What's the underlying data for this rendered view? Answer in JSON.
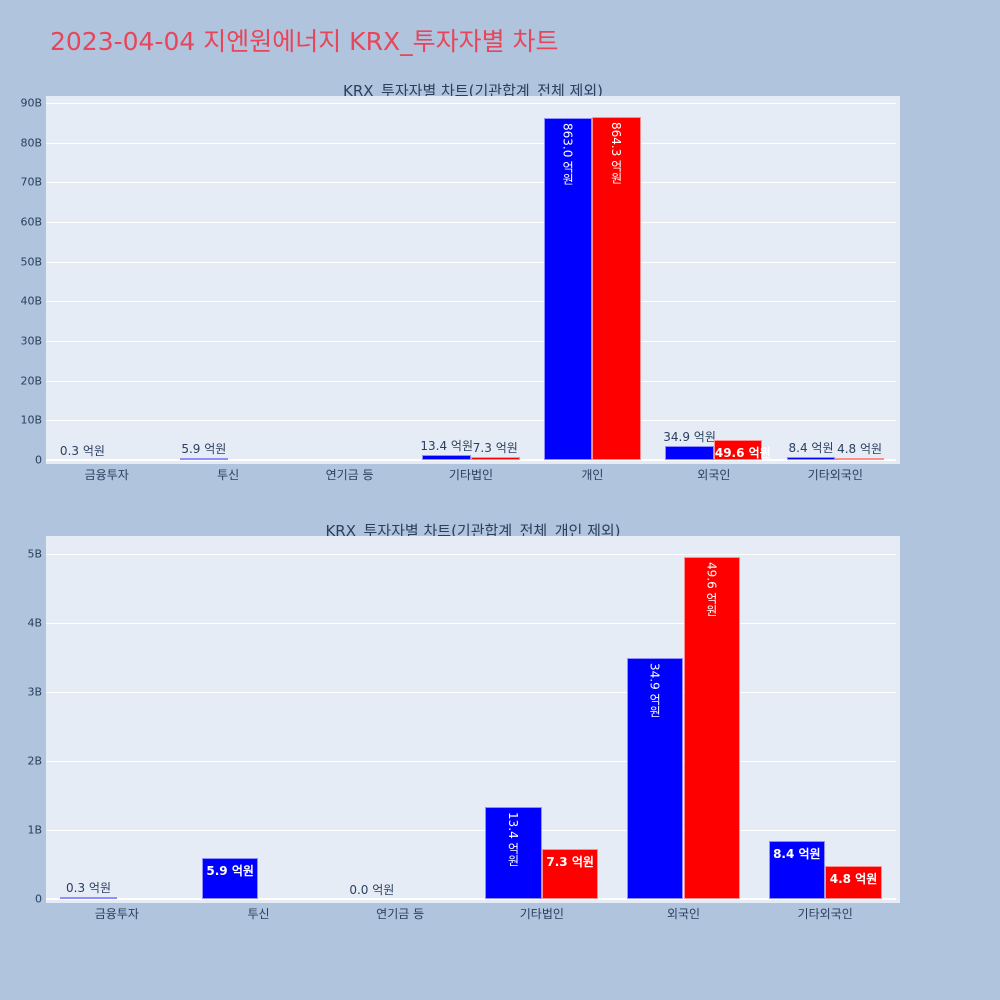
{
  "title": "2023-04-04 지엔원에너지 KRX_투자자별 차트",
  "colors": {
    "background": "#b0c4de",
    "plot_bg": "#e5ecf6",
    "title": "#e8455a",
    "buy": "#0000ff",
    "sell": "#ff0000"
  },
  "charts": [
    {
      "title": "KRX_투자자별 차트(기관합계_전체 제외)",
      "yticks": [
        "0",
        "10B",
        "20B",
        "30B",
        "40B",
        "50B",
        "60B",
        "70B",
        "80B",
        "90B"
      ],
      "categories": [
        "금융투자",
        "투신",
        "연기금 등",
        "기타법인",
        "개인",
        "외국인",
        "기타외국인"
      ],
      "labels": {
        "blue": [
          "0.3 억원",
          "5.9 억원",
          "",
          "13.4 억원",
          "863.0 억원",
          "34.9 억원",
          "8.4 억원"
        ],
        "red": [
          "",
          "",
          "",
          "7.3 억원",
          "864.3 억원",
          "49.6 억원",
          "4.8 억원"
        ]
      }
    },
    {
      "title": "KRX_투자자별 차트(기관합계_전체_개인 제외)",
      "yticks": [
        "0",
        "1B",
        "2B",
        "3B",
        "4B",
        "5B"
      ],
      "categories": [
        "금융투자",
        "투신",
        "연기금 등",
        "기타법인",
        "외국인",
        "기타외국인"
      ],
      "labels": {
        "blue": [
          "0.3 억원",
          "5.9 억원",
          "0.0 억원",
          "13.4 억원",
          "34.9 억원",
          "8.4 억원"
        ],
        "red": [
          "",
          "",
          "",
          "7.3 억원",
          "49.6 억원",
          "4.8 억원"
        ]
      }
    }
  ],
  "chart_data": [
    {
      "type": "bar",
      "title": "KRX_투자자별 차트(기관합계_전체 제외)",
      "categories": [
        "금융투자",
        "투신",
        "연기금 등",
        "기타법인",
        "개인",
        "외국인",
        "기타외국인"
      ],
      "series": [
        {
          "name": "blue",
          "color": "#0000ff",
          "values": [
            0.03,
            0.59,
            0,
            1.34,
            86.3,
            3.49,
            0.84
          ]
        },
        {
          "name": "red",
          "color": "#ff0000",
          "values": [
            0,
            0,
            0,
            0.73,
            86.43,
            4.96,
            0.48
          ]
        }
      ],
      "unit": "B (billion KRW)",
      "ylim": [
        0,
        90
      ],
      "yticks": [
        "0",
        "10B",
        "20B",
        "30B",
        "40B",
        "50B",
        "60B",
        "70B",
        "80B",
        "90B"
      ],
      "grid": true,
      "legend": false
    },
    {
      "type": "bar",
      "title": "KRX_투자자별 차트(기관합계_전체_개인 제외)",
      "categories": [
        "금융투자",
        "투신",
        "연기금 등",
        "기타법인",
        "외국인",
        "기타외국인"
      ],
      "series": [
        {
          "name": "blue",
          "color": "#0000ff",
          "values": [
            0.03,
            0.59,
            0.0,
            1.34,
            3.49,
            0.84
          ]
        },
        {
          "name": "red",
          "color": "#ff0000",
          "values": [
            0,
            0,
            0,
            0.73,
            4.96,
            0.48
          ]
        }
      ],
      "unit": "B (billion KRW)",
      "ylim": [
        0,
        5.2
      ],
      "yticks": [
        "0",
        "1B",
        "2B",
        "3B",
        "4B",
        "5B"
      ],
      "grid": true,
      "legend": false
    }
  ]
}
